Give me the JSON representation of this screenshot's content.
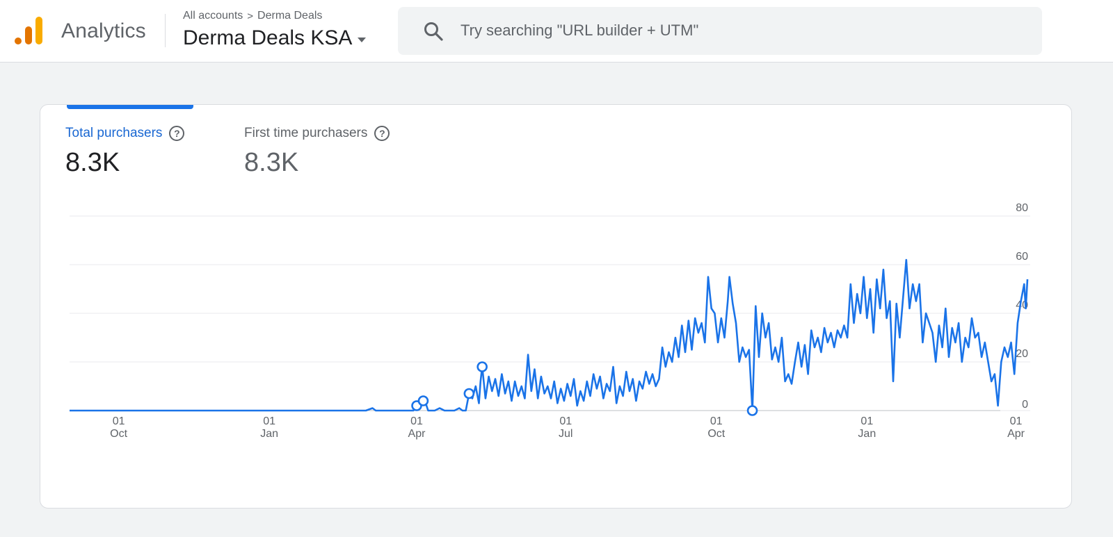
{
  "app": {
    "name": "Analytics",
    "breadcrumb": {
      "account": "All accounts",
      "separator": ">",
      "property_group": "Derma Deals"
    },
    "property": "Derma Deals KSA"
  },
  "search": {
    "placeholder": "Try searching \"URL builder + UTM\"",
    "value": ""
  },
  "colors": {
    "accent": "#1a73e8",
    "line": "#1a73e8",
    "logo": [
      "#e37400",
      "#f9ab00",
      "#f9ab00"
    ]
  },
  "metrics": [
    {
      "label": "Total purchasers",
      "value": "8.3K",
      "selected": true
    },
    {
      "label": "First time purchasers",
      "value": "8.3K",
      "selected": false
    }
  ],
  "chart_data": {
    "type": "line",
    "ylim": [
      0,
      80
    ],
    "y_ticks": [
      "80",
      "60",
      "40",
      "20",
      "0"
    ],
    "y_tick_values": [
      80,
      60,
      40,
      20,
      0
    ],
    "x_ticks": [
      {
        "day": "01",
        "month": "Oct",
        "date": "2022-10-01"
      },
      {
        "day": "01",
        "month": "Jan",
        "date": "2023-01-01"
      },
      {
        "day": "01",
        "month": "Apr",
        "date": "2023-04-01"
      },
      {
        "day": "01",
        "month": "Jul",
        "date": "2023-07-01"
      },
      {
        "day": "01",
        "month": "Oct",
        "date": "2023-10-01"
      },
      {
        "day": "01",
        "month": "Jan",
        "date": "2024-01-01"
      },
      {
        "day": "01",
        "month": "Apr",
        "date": "2024-04-01"
      }
    ],
    "grid": true,
    "series": [
      {
        "points": [
          [
            "2022-09-01",
            0
          ],
          [
            "2022-12-01",
            0
          ],
          [
            "2023-03-01",
            0
          ],
          [
            "2023-03-05",
            1
          ],
          [
            "2023-03-07",
            0
          ],
          [
            "2023-03-30",
            0
          ],
          [
            "2023-04-01",
            2
          ],
          [
            "2023-04-03",
            4
          ],
          [
            "2023-04-06",
            4
          ],
          [
            "2023-04-08",
            0
          ],
          [
            "2023-04-12",
            0
          ],
          [
            "2023-04-15",
            1
          ],
          [
            "2023-04-18",
            0
          ],
          [
            "2023-04-24",
            0
          ],
          [
            "2023-04-27",
            1
          ],
          [
            "2023-04-29",
            0
          ],
          [
            "2023-05-01",
            0
          ],
          [
            "2023-05-03",
            7
          ],
          [
            "2023-05-05",
            5
          ],
          [
            "2023-05-07",
            10
          ],
          [
            "2023-05-09",
            3
          ],
          [
            "2023-05-10",
            12
          ],
          [
            "2023-05-11",
            18
          ],
          [
            "2023-05-13",
            5
          ],
          [
            "2023-05-15",
            14
          ],
          [
            "2023-05-17",
            8
          ],
          [
            "2023-05-19",
            13
          ],
          [
            "2023-05-21",
            6
          ],
          [
            "2023-05-23",
            15
          ],
          [
            "2023-05-25",
            7
          ],
          [
            "2023-05-27",
            12
          ],
          [
            "2023-05-29",
            4
          ],
          [
            "2023-05-31",
            12
          ],
          [
            "2023-06-02",
            6
          ],
          [
            "2023-06-04",
            10
          ],
          [
            "2023-06-06",
            5
          ],
          [
            "2023-06-08",
            23
          ],
          [
            "2023-06-10",
            8
          ],
          [
            "2023-06-12",
            17
          ],
          [
            "2023-06-14",
            5
          ],
          [
            "2023-06-16",
            14
          ],
          [
            "2023-06-18",
            7
          ],
          [
            "2023-06-20",
            10
          ],
          [
            "2023-06-22",
            5
          ],
          [
            "2023-06-24",
            12
          ],
          [
            "2023-06-26",
            3
          ],
          [
            "2023-06-28",
            9
          ],
          [
            "2023-06-30",
            4
          ],
          [
            "2023-07-02",
            11
          ],
          [
            "2023-07-04",
            6
          ],
          [
            "2023-07-06",
            13
          ],
          [
            "2023-07-08",
            2
          ],
          [
            "2023-07-10",
            8
          ],
          [
            "2023-07-12",
            4
          ],
          [
            "2023-07-14",
            12
          ],
          [
            "2023-07-16",
            6
          ],
          [
            "2023-07-18",
            15
          ],
          [
            "2023-07-20",
            9
          ],
          [
            "2023-07-22",
            14
          ],
          [
            "2023-07-24",
            5
          ],
          [
            "2023-07-26",
            11
          ],
          [
            "2023-07-28",
            8
          ],
          [
            "2023-07-30",
            18
          ],
          [
            "2023-08-01",
            3
          ],
          [
            "2023-08-03",
            10
          ],
          [
            "2023-08-05",
            6
          ],
          [
            "2023-08-07",
            16
          ],
          [
            "2023-08-09",
            8
          ],
          [
            "2023-08-11",
            13
          ],
          [
            "2023-08-13",
            4
          ],
          [
            "2023-08-15",
            12
          ],
          [
            "2023-08-17",
            9
          ],
          [
            "2023-08-19",
            16
          ],
          [
            "2023-08-21",
            11
          ],
          [
            "2023-08-23",
            15
          ],
          [
            "2023-08-25",
            10
          ],
          [
            "2023-08-27",
            13
          ],
          [
            "2023-08-29",
            26
          ],
          [
            "2023-08-31",
            18
          ],
          [
            "2023-09-02",
            24
          ],
          [
            "2023-09-04",
            20
          ],
          [
            "2023-09-06",
            30
          ],
          [
            "2023-09-08",
            22
          ],
          [
            "2023-09-10",
            35
          ],
          [
            "2023-09-12",
            24
          ],
          [
            "2023-09-14",
            37
          ],
          [
            "2023-09-16",
            25
          ],
          [
            "2023-09-18",
            38
          ],
          [
            "2023-09-20",
            32
          ],
          [
            "2023-09-22",
            36
          ],
          [
            "2023-09-24",
            28
          ],
          [
            "2023-09-26",
            55
          ],
          [
            "2023-09-28",
            42
          ],
          [
            "2023-09-30",
            40
          ],
          [
            "2023-10-02",
            28
          ],
          [
            "2023-10-04",
            38
          ],
          [
            "2023-10-06",
            30
          ],
          [
            "2023-10-08",
            45
          ],
          [
            "2023-10-09",
            55
          ],
          [
            "2023-10-11",
            44
          ],
          [
            "2023-10-13",
            36
          ],
          [
            "2023-10-15",
            20
          ],
          [
            "2023-10-17",
            26
          ],
          [
            "2023-10-19",
            22
          ],
          [
            "2023-10-21",
            25
          ],
          [
            "2023-10-23",
            0
          ],
          [
            "2023-10-25",
            43
          ],
          [
            "2023-10-27",
            22
          ],
          [
            "2023-10-29",
            40
          ],
          [
            "2023-10-31",
            30
          ],
          [
            "2023-11-02",
            36
          ],
          [
            "2023-11-04",
            21
          ],
          [
            "2023-11-06",
            26
          ],
          [
            "2023-11-08",
            20
          ],
          [
            "2023-11-10",
            30
          ],
          [
            "2023-11-12",
            12
          ],
          [
            "2023-11-14",
            15
          ],
          [
            "2023-11-16",
            11
          ],
          [
            "2023-11-18",
            20
          ],
          [
            "2023-11-20",
            28
          ],
          [
            "2023-11-22",
            18
          ],
          [
            "2023-11-24",
            27
          ],
          [
            "2023-11-26",
            15
          ],
          [
            "2023-11-28",
            33
          ],
          [
            "2023-11-30",
            26
          ],
          [
            "2023-12-02",
            30
          ],
          [
            "2023-12-04",
            24
          ],
          [
            "2023-12-06",
            34
          ],
          [
            "2023-12-08",
            28
          ],
          [
            "2023-12-10",
            32
          ],
          [
            "2023-12-12",
            26
          ],
          [
            "2023-12-14",
            33
          ],
          [
            "2023-12-16",
            30
          ],
          [
            "2023-12-18",
            35
          ],
          [
            "2023-12-20",
            30
          ],
          [
            "2023-12-22",
            52
          ],
          [
            "2023-12-24",
            36
          ],
          [
            "2023-12-26",
            48
          ],
          [
            "2023-12-28",
            40
          ],
          [
            "2023-12-30",
            55
          ],
          [
            "2024-01-01",
            38
          ],
          [
            "2024-01-03",
            50
          ],
          [
            "2024-01-05",
            32
          ],
          [
            "2024-01-07",
            54
          ],
          [
            "2024-01-09",
            42
          ],
          [
            "2024-01-11",
            58
          ],
          [
            "2024-01-13",
            38
          ],
          [
            "2024-01-15",
            45
          ],
          [
            "2024-01-17",
            12
          ],
          [
            "2024-01-19",
            44
          ],
          [
            "2024-01-21",
            30
          ],
          [
            "2024-01-23",
            46
          ],
          [
            "2024-01-25",
            62
          ],
          [
            "2024-01-27",
            42
          ],
          [
            "2024-01-29",
            52
          ],
          [
            "2024-01-31",
            45
          ],
          [
            "2024-02-02",
            52
          ],
          [
            "2024-02-04",
            28
          ],
          [
            "2024-02-06",
            40
          ],
          [
            "2024-02-08",
            36
          ],
          [
            "2024-02-10",
            32
          ],
          [
            "2024-02-12",
            20
          ],
          [
            "2024-02-14",
            35
          ],
          [
            "2024-02-16",
            26
          ],
          [
            "2024-02-18",
            42
          ],
          [
            "2024-02-20",
            22
          ],
          [
            "2024-02-22",
            34
          ],
          [
            "2024-02-24",
            28
          ],
          [
            "2024-02-26",
            36
          ],
          [
            "2024-02-28",
            20
          ],
          [
            "2024-03-01",
            30
          ],
          [
            "2024-03-03",
            26
          ],
          [
            "2024-03-05",
            38
          ],
          [
            "2024-03-07",
            30
          ],
          [
            "2024-03-09",
            32
          ],
          [
            "2024-03-11",
            22
          ],
          [
            "2024-03-13",
            28
          ],
          [
            "2024-03-15",
            20
          ],
          [
            "2024-03-17",
            12
          ],
          [
            "2024-03-19",
            15
          ],
          [
            "2024-03-21",
            2
          ],
          [
            "2024-03-23",
            20
          ],
          [
            "2024-03-25",
            26
          ],
          [
            "2024-03-27",
            22
          ],
          [
            "2024-03-29",
            28
          ],
          [
            "2024-03-31",
            15
          ],
          [
            "2024-04-02",
            36
          ],
          [
            "2024-04-04",
            45
          ],
          [
            "2024-04-06",
            52
          ],
          [
            "2024-04-07",
            42
          ],
          [
            "2024-04-08",
            54
          ]
        ]
      }
    ],
    "highlighted_points": [
      [
        "2023-04-01",
        2
      ],
      [
        "2023-04-05",
        4
      ],
      [
        "2023-05-03",
        7
      ],
      [
        "2023-05-11",
        18
      ],
      [
        "2023-10-23",
        0
      ]
    ]
  }
}
